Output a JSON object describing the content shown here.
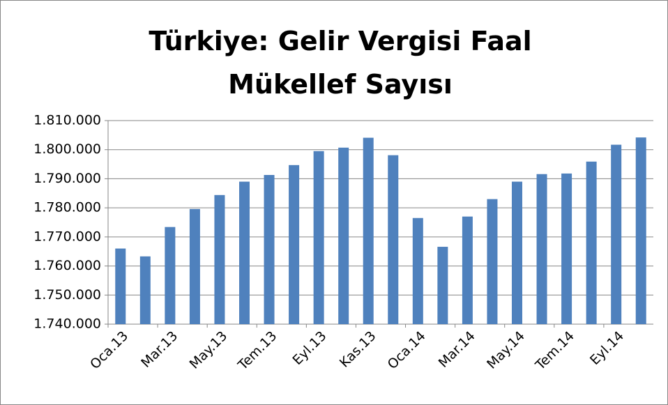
{
  "chart_data": {
    "type": "bar",
    "title": "Türkiye: Gelir Vergisi Faal Mükellef Sayısı",
    "categories": [
      "Oca.13",
      null,
      "Mar.13",
      null,
      "May.13",
      null,
      "Tem.13",
      null,
      "Eyl.13",
      null,
      "Kas.13",
      null,
      "Oca.14",
      null,
      "Mar.14",
      null,
      "May.14",
      null,
      "Tem.14",
      null,
      "Eyl.14",
      null
    ],
    "values": [
      1766000,
      1763300,
      1773400,
      1779600,
      1784400,
      1789000,
      1791300,
      1794700,
      1799500,
      1800700,
      1804100,
      1798100,
      1776500,
      1766600,
      1777000,
      1783000,
      1789000,
      1791600,
      1791800,
      1795900,
      1801700,
      1804200
    ],
    "color": "#4f81bd",
    "ylim": [
      1740000,
      1810000
    ],
    "yticks": [
      {
        "value": 1740000,
        "label": "1.740.000"
      },
      {
        "value": 1750000,
        "label": "1.750.000"
      },
      {
        "value": 1760000,
        "label": "1.760.000"
      },
      {
        "value": 1770000,
        "label": "1.770.000"
      },
      {
        "value": 1780000,
        "label": "1.780.000"
      },
      {
        "value": 1790000,
        "label": "1.790.000"
      },
      {
        "value": 1800000,
        "label": "1.800.000"
      },
      {
        "value": 1810000,
        "label": "1.810.000"
      }
    ],
    "grid": true
  }
}
